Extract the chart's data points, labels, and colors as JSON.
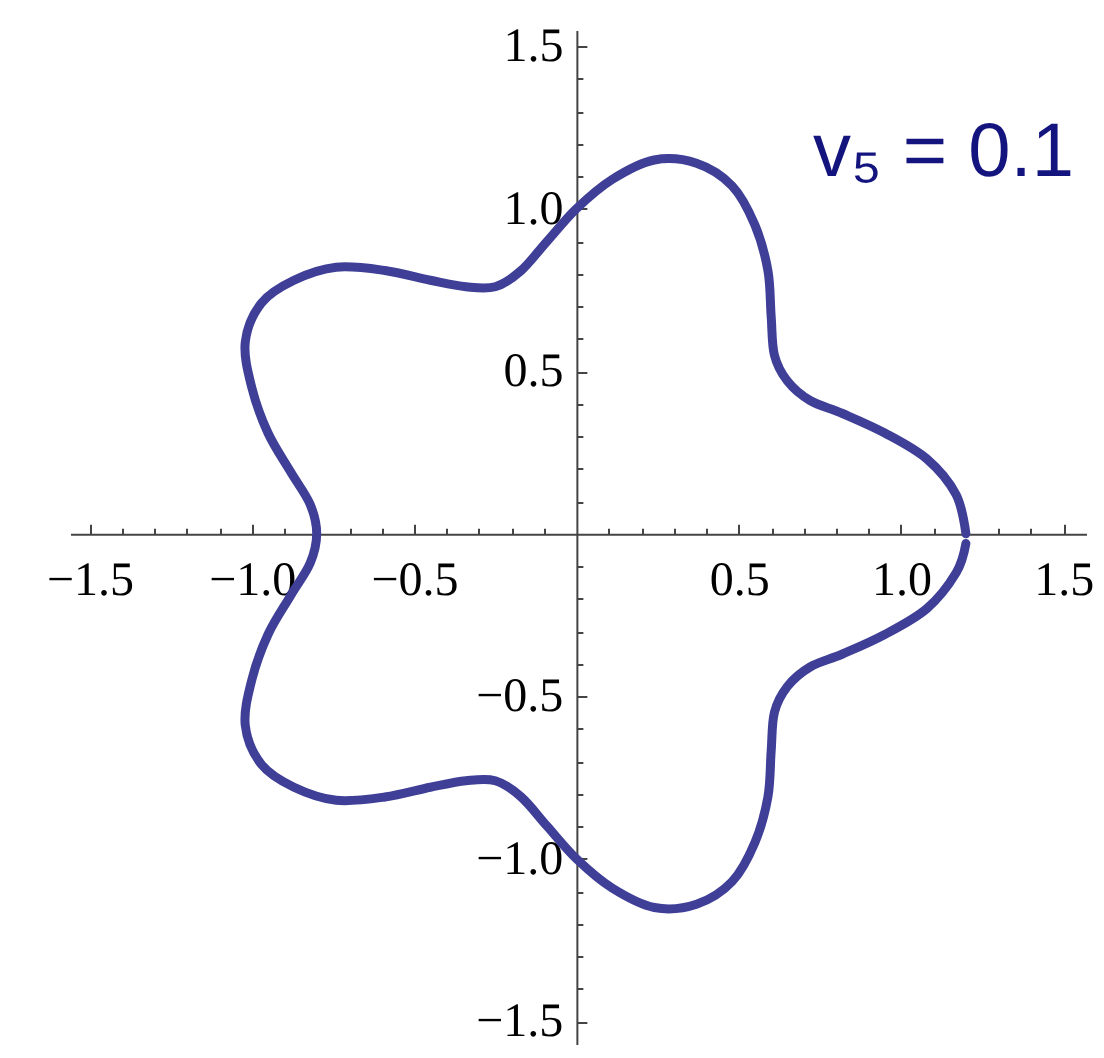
{
  "chart_data": {
    "type": "line",
    "color": "#3f3f98",
    "x": [
      1.2,
      1.17,
      1.08,
      0.95,
      0.82,
      0.72,
      0.65,
      0.61,
      0.6,
      0.59,
      0.55,
      0.48,
      0.37,
      0.24,
      0.11,
      0.0,
      -0.09,
      -0.17,
      -0.25,
      -0.34,
      -0.45,
      -0.59,
      -0.74,
      -0.87,
      -0.97,
      -1.02,
      -1.0,
      -0.95,
      -0.88,
      -0.82,
      -0.8,
      -0.82,
      -0.88,
      -0.95,
      -1.0,
      -1.02,
      -0.97,
      -0.87,
      -0.74,
      -0.59,
      -0.45,
      -0.34,
      -0.25,
      -0.17,
      -0.09,
      0.0,
      0.11,
      0.24,
      0.37,
      0.48,
      0.55,
      0.59,
      0.6,
      0.61,
      0.65,
      0.72,
      0.82,
      0.95,
      1.08,
      1.17,
      1.2
    ],
    "values": [
      0.0,
      0.12,
      0.23,
      0.31,
      0.37,
      0.41,
      0.47,
      0.55,
      0.67,
      0.81,
      0.95,
      1.07,
      1.14,
      1.15,
      1.09,
      1.0,
      0.9,
      0.81,
      0.76,
      0.76,
      0.78,
      0.81,
      0.82,
      0.78,
      0.71,
      0.59,
      0.45,
      0.31,
      0.19,
      0.09,
      0.0,
      -0.09,
      -0.19,
      -0.31,
      -0.45,
      -0.59,
      -0.71,
      -0.78,
      -0.82,
      -0.81,
      -0.78,
      -0.76,
      -0.76,
      -0.81,
      -0.9,
      -1.0,
      -1.09,
      -1.15,
      -1.14,
      -1.07,
      -0.95,
      -0.81,
      -0.67,
      -0.55,
      -0.47,
      -0.41,
      -0.37,
      -0.31,
      -0.23,
      -0.12,
      -0.03
    ],
    "xlim": [
      -1.56,
      1.57
    ],
    "ylim": [
      -1.57,
      1.55
    ],
    "xticks": [
      {
        "value": -1.5,
        "label": "−1.5"
      },
      {
        "value": -1.4,
        "label": null
      },
      {
        "value": -1.3,
        "label": null
      },
      {
        "value": -1.2,
        "label": null
      },
      {
        "value": -1.1,
        "label": null
      },
      {
        "value": -1,
        "label": "−1.0"
      },
      {
        "value": -0.9,
        "label": null
      },
      {
        "value": -0.8,
        "label": null
      },
      {
        "value": -0.7,
        "label": null
      },
      {
        "value": -0.6,
        "label": null
      },
      {
        "value": -0.5,
        "label": "−0.5"
      },
      {
        "value": -0.4,
        "label": null
      },
      {
        "value": -0.3,
        "label": null
      },
      {
        "value": -0.2,
        "label": null
      },
      {
        "value": -0.1,
        "label": null
      },
      {
        "value": 0.1,
        "label": null
      },
      {
        "value": 0.2,
        "label": null
      },
      {
        "value": 0.3,
        "label": null
      },
      {
        "value": 0.4,
        "label": null
      },
      0.5,
      {
        "value": 0.6,
        "label": null
      },
      {
        "value": 0.7,
        "label": null
      },
      {
        "value": 0.8,
        "label": null
      },
      {
        "value": 0.9,
        "label": null
      },
      {
        "value": 1,
        "label": "1.0"
      },
      {
        "value": 1.1,
        "label": null
      },
      {
        "value": 1.2,
        "label": null
      },
      {
        "value": 1.3,
        "label": null
      },
      {
        "value": 1.4,
        "label": null
      },
      1.5
    ],
    "yticks": [
      {
        "value": -1.5,
        "label": "−1.5"
      },
      {
        "value": -1.4,
        "label": null
      },
      {
        "value": -1.3,
        "label": null
      },
      {
        "value": -1.2,
        "label": null
      },
      {
        "value": -1.1,
        "label": null
      },
      {
        "value": -1,
        "label": "−1.0"
      },
      {
        "value": -0.9,
        "label": null
      },
      {
        "value": -0.8,
        "label": null
      },
      {
        "value": -0.7,
        "label": null
      },
      {
        "value": -0.6,
        "label": null
      },
      {
        "value": -0.5,
        "label": "−0.5"
      },
      {
        "value": -0.4,
        "label": null
      },
      {
        "value": -0.3,
        "label": null
      },
      {
        "value": -0.2,
        "label": null
      },
      {
        "value": -0.1,
        "label": null
      },
      {
        "value": 0.1,
        "label": null
      },
      {
        "value": 0.2,
        "label": null
      },
      {
        "value": 0.3,
        "label": null
      },
      {
        "value": 0.4,
        "label": null
      },
      0.5,
      {
        "value": 0.6,
        "label": null
      },
      {
        "value": 0.7,
        "label": null
      },
      {
        "value": 0.8,
        "label": null
      },
      {
        "value": 0.9,
        "label": null
      },
      {
        "value": 1,
        "label": "1.0"
      },
      {
        "value": 1.1,
        "label": null
      },
      {
        "value": 1.2,
        "label": null
      },
      {
        "value": 1.3,
        "label": null
      },
      {
        "value": 1.4,
        "label": null
      },
      1.5
    ],
    "annotations": [
      "v₅ = 0.1"
    ]
  }
}
